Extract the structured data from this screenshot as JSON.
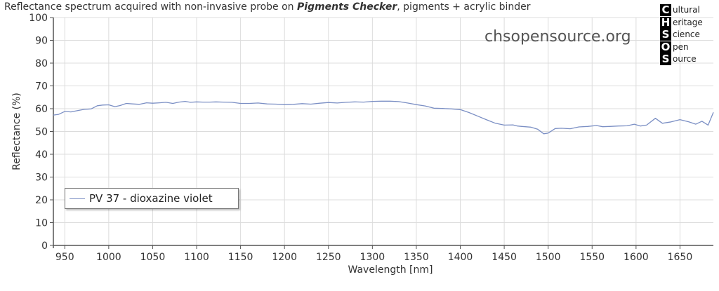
{
  "title": {
    "prefix": "Reflectance spectrum acquired with non-invasive probe on ",
    "emphasis": "Pigments Checker",
    "suffix": ", pigments + acrylic binder"
  },
  "watermark": "chsopensource.org",
  "logo": {
    "rows": [
      {
        "letter": "C",
        "word": "ultural"
      },
      {
        "letter": "H",
        "word": "eritage"
      },
      {
        "letter": "S",
        "word": "cience"
      },
      {
        "letter": "O",
        "word": "pen"
      },
      {
        "letter": "S",
        "word": "ource"
      }
    ]
  },
  "colors": {
    "series": "#7b8fc4",
    "grid": "#dcdcdc",
    "axis": "#555555"
  },
  "chart_data": {
    "type": "line",
    "title": "Reflectance spectrum acquired with non-invasive probe on Pigments Checker, pigments + acrylic binder",
    "xlabel": "Wavelength [nm]",
    "ylabel": "Reflectance (%)",
    "xlim": [
      937,
      1688
    ],
    "ylim": [
      0,
      100
    ],
    "xticks": [
      950,
      1000,
      1050,
      1100,
      1150,
      1200,
      1250,
      1300,
      1350,
      1400,
      1450,
      1500,
      1550,
      1600,
      1650
    ],
    "yticks": [
      0,
      10,
      20,
      30,
      40,
      50,
      60,
      70,
      80,
      90,
      100
    ],
    "grid": true,
    "legend_position": "bottom-left",
    "series": [
      {
        "name": "PV 37 - dioxazine violet",
        "x": [
          937,
          943,
          950,
          957,
          965,
          972,
          980,
          987,
          993,
          1000,
          1007,
          1013,
          1020,
          1027,
          1035,
          1043,
          1050,
          1058,
          1065,
          1073,
          1080,
          1087,
          1093,
          1100,
          1107,
          1115,
          1122,
          1130,
          1140,
          1150,
          1160,
          1170,
          1180,
          1190,
          1200,
          1210,
          1220,
          1230,
          1240,
          1250,
          1260,
          1270,
          1280,
          1290,
          1300,
          1310,
          1320,
          1330,
          1340,
          1350,
          1360,
          1370,
          1380,
          1390,
          1400,
          1410,
          1420,
          1430,
          1440,
          1450,
          1460,
          1465,
          1470,
          1480,
          1488,
          1495,
          1500,
          1508,
          1515,
          1525,
          1535,
          1545,
          1555,
          1562,
          1570,
          1580,
          1590,
          1598,
          1605,
          1612,
          1622,
          1630,
          1640,
          1650,
          1660,
          1668,
          1675,
          1682,
          1688
        ],
        "y": [
          57.2,
          57.5,
          58.8,
          58.6,
          59.2,
          59.7,
          59.9,
          61.3,
          61.6,
          61.7,
          60.9,
          61.4,
          62.3,
          62.1,
          61.9,
          62.6,
          62.4,
          62.6,
          62.8,
          62.3,
          62.9,
          63.2,
          62.8,
          63.0,
          62.9,
          62.9,
          63.0,
          62.9,
          62.8,
          62.3,
          62.3,
          62.5,
          62.1,
          62.0,
          61.8,
          61.9,
          62.2,
          62.0,
          62.4,
          62.7,
          62.5,
          62.8,
          63.0,
          62.9,
          63.2,
          63.3,
          63.3,
          63.1,
          62.5,
          61.8,
          61.2,
          60.2,
          60.1,
          59.9,
          59.6,
          58.3,
          56.7,
          55.1,
          53.6,
          52.8,
          52.9,
          52.4,
          52.2,
          51.9,
          51.0,
          49.0,
          49.3,
          51.3,
          51.4,
          51.2,
          52.0,
          52.2,
          52.6,
          52.1,
          52.2,
          52.4,
          52.5,
          53.2,
          52.4,
          52.8,
          55.8,
          53.6,
          54.2,
          55.2,
          54.2,
          53.2,
          54.5,
          52.8,
          58.4
        ]
      }
    ]
  }
}
